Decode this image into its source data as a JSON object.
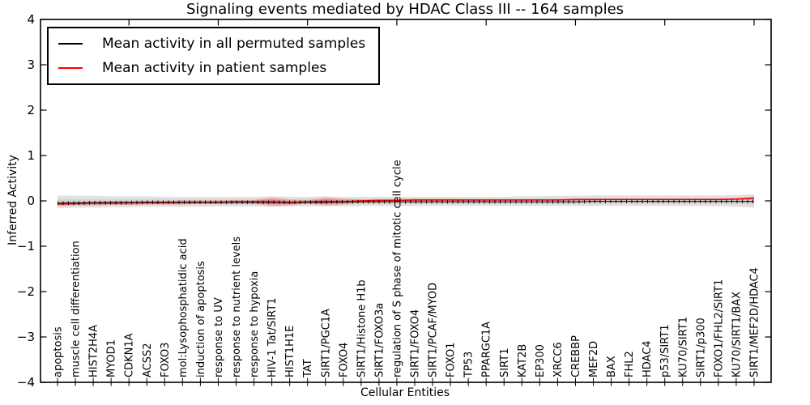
{
  "title": "Signaling events mediated by HDAC Class III -- 164 samples",
  "legend": {
    "items": [
      {
        "label": "Mean activity in all permuted samples",
        "color": "#000000"
      },
      {
        "label": "Mean activity in patient samples",
        "color": "#ff0000"
      }
    ]
  },
  "axes": {
    "xlabel": "Cellular Entities",
    "ylabel": "Inferred Activity",
    "ytick_labels": [
      "−4",
      "−3",
      "−2",
      "−1",
      "0",
      "1",
      "2",
      "3",
      "4"
    ]
  },
  "chart_data": {
    "type": "line",
    "title": "Signaling events mediated by HDAC Class III -- 164 samples",
    "xlabel": "Cellular Entities",
    "ylabel": "Inferred Activity",
    "ylim": [
      -4,
      4
    ],
    "yticks": [
      -4,
      -3,
      -2,
      -1,
      0,
      1,
      2,
      3,
      4
    ],
    "grid": false,
    "legend_position": "upper left",
    "categories": [
      "apoptosis",
      "muscle cell differentiation",
      "HIST2H4A",
      "MYOD1",
      "CDKN1A",
      "ACSS2",
      "FOXO3",
      "mol:Lysophosphatidic acid",
      "induction of apoptosis",
      "response to UV",
      "response to nutrient levels",
      "response to hypoxia",
      "HIV-1 Tat/SIRT1",
      "HIST1H1E",
      "TAT",
      "SIRT1/PGC1A",
      "FOXO4",
      "SIRT1/Histone H1b",
      "SIRT1/FOXO3a",
      "regulation of S phase of mitotic cell cycle",
      "SIRT1/FOXO4",
      "SIRT1/PCAF/MYOD",
      "FOXO1",
      "TP53",
      "PPARGC1A",
      "SIRT1",
      "KAT2B",
      "EP300",
      "XRCC6",
      "CREBBP",
      "MEF2D",
      "BAX",
      "FHL2",
      "HDAC4",
      "p53/SIRT1",
      "KU70/SIRT1",
      "SIRT1/p300",
      "FOXO1/FHL2/SIRT1",
      "KU70/SIRT1/BAX",
      "SIRT1/MEF2D/HDAC4"
    ],
    "series": [
      {
        "name": "Mean activity in all permuted samples",
        "color": "#000000",
        "style": "solid-with-tick-markers",
        "values": [
          -0.05,
          -0.05,
          -0.04,
          -0.04,
          -0.04,
          -0.03,
          -0.03,
          -0.03,
          -0.03,
          -0.03,
          -0.03,
          -0.03,
          -0.03,
          -0.03,
          -0.03,
          -0.03,
          -0.02,
          -0.02,
          -0.02,
          -0.02,
          -0.02,
          -0.02,
          -0.02,
          -0.02,
          -0.02,
          -0.02,
          -0.02,
          -0.02,
          -0.02,
          -0.02,
          -0.01,
          -0.01,
          -0.01,
          -0.01,
          -0.01,
          -0.01,
          -0.01,
          -0.01,
          -0.01,
          -0.01
        ]
      },
      {
        "name": "Mean activity in patient samples",
        "color": "#ff0000",
        "style": "solid",
        "values": [
          -0.07,
          -0.06,
          -0.05,
          -0.05,
          -0.04,
          -0.04,
          -0.04,
          -0.03,
          -0.03,
          -0.03,
          -0.02,
          -0.02,
          -0.02,
          -0.04,
          -0.02,
          -0.01,
          -0.02,
          0.0,
          0.01,
          0.01,
          0.02,
          0.02,
          0.02,
          0.02,
          0.02,
          0.02,
          0.02,
          0.02,
          0.02,
          0.03,
          0.03,
          0.03,
          0.03,
          0.03,
          0.03,
          0.03,
          0.03,
          0.03,
          0.04,
          0.06
        ]
      }
    ],
    "bands": [
      {
        "name": "permuted-samples-spread",
        "color": "#d7d7d7",
        "upper": [
          0.12,
          0.11,
          0.11,
          0.1,
          0.1,
          0.1,
          0.09,
          0.09,
          0.09,
          0.09,
          0.09,
          0.09,
          0.1,
          0.09,
          0.09,
          0.1,
          0.09,
          0.09,
          0.09,
          0.09,
          0.09,
          0.09,
          0.09,
          0.09,
          0.09,
          0.09,
          0.1,
          0.1,
          0.11,
          0.11,
          0.12,
          0.12,
          0.12,
          0.12,
          0.12,
          0.12,
          0.12,
          0.12,
          0.13,
          0.15
        ],
        "lower": [
          -0.16,
          -0.15,
          -0.15,
          -0.14,
          -0.14,
          -0.13,
          -0.13,
          -0.13,
          -0.13,
          -0.12,
          -0.12,
          -0.12,
          -0.13,
          -0.12,
          -0.12,
          -0.12,
          -0.12,
          -0.11,
          -0.11,
          -0.11,
          -0.11,
          -0.11,
          -0.11,
          -0.11,
          -0.11,
          -0.11,
          -0.11,
          -0.11,
          -0.11,
          -0.11,
          -0.11,
          -0.11,
          -0.11,
          -0.11,
          -0.11,
          -0.11,
          -0.11,
          -0.12,
          -0.13,
          -0.15
        ]
      },
      {
        "name": "patient-samples-spread",
        "color": "#ff0000",
        "upper": [
          -0.02,
          -0.01,
          -0.01,
          0.0,
          0.0,
          0.0,
          0.0,
          0.01,
          0.01,
          0.01,
          0.02,
          0.02,
          0.08,
          0.03,
          0.02,
          0.08,
          0.05,
          0.03,
          0.04,
          0.04,
          0.05,
          0.05,
          0.05,
          0.04,
          0.04,
          0.04,
          0.04,
          0.04,
          0.04,
          0.05,
          0.05,
          0.05,
          0.05,
          0.05,
          0.05,
          0.05,
          0.05,
          0.05,
          0.06,
          0.1
        ],
        "lower": [
          -0.11,
          -0.1,
          -0.1,
          -0.09,
          -0.09,
          -0.08,
          -0.08,
          -0.08,
          -0.07,
          -0.07,
          -0.06,
          -0.06,
          -0.12,
          -0.1,
          -0.06,
          -0.1,
          -0.08,
          -0.04,
          -0.03,
          -0.02,
          -0.01,
          -0.01,
          -0.01,
          -0.01,
          -0.01,
          0.0,
          0.0,
          0.0,
          0.0,
          0.0,
          0.0,
          0.01,
          0.01,
          0.01,
          0.01,
          0.01,
          0.01,
          0.01,
          0.01,
          0.02
        ]
      }
    ]
  }
}
